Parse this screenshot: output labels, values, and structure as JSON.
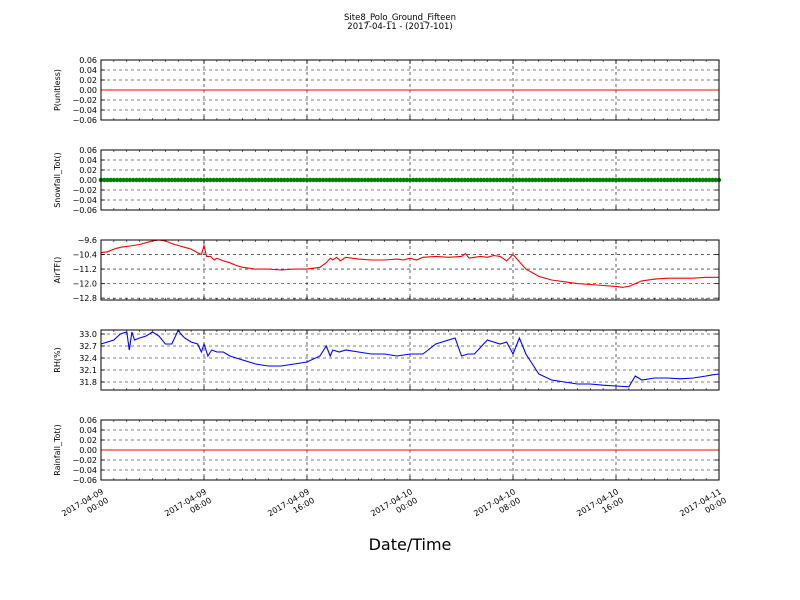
{
  "title": "Site8_Polo_Ground_Fifteen",
  "subtitle": "2017-04-11 - (2017-101)",
  "xlabel": "Date/Time",
  "x_ticks": [
    [
      "2017-04-09",
      "00:00"
    ],
    [
      "2017-04-09",
      "08:00"
    ],
    [
      "2017-04-09",
      "16:00"
    ],
    [
      "2017-04-10",
      "00:00"
    ],
    [
      "2017-04-10",
      "08:00"
    ],
    [
      "2017-04-10",
      "16:00"
    ],
    [
      "2017-04-11",
      "00:00"
    ]
  ],
  "chart_data": [
    {
      "type": "line",
      "ylabel": "P(unitless)",
      "ylim": [
        -0.06,
        0.06
      ],
      "yticks": [
        "0.06",
        "0.04",
        "0.02",
        "0.00",
        "−0.02",
        "−0.04",
        "−0.06"
      ],
      "color": "#ff0000",
      "x": [
        0,
        48
      ],
      "y": [
        0.0,
        0.0
      ],
      "grid": true
    },
    {
      "type": "line",
      "ylabel": "Snowfall_Tot()",
      "ylim": [
        -0.06,
        0.06
      ],
      "yticks": [
        "0.06",
        "0.04",
        "0.02",
        "0.00",
        "−0.02",
        "−0.04",
        "−0.06"
      ],
      "color": "#008000",
      "x": [
        0,
        48
      ],
      "y": [
        0.0,
        0.0
      ],
      "marker": "dot",
      "grid": true
    },
    {
      "type": "line",
      "ylabel": "AirTF()",
      "ylim": [
        -12.9,
        -9.6
      ],
      "yticks": [
        "−9.6",
        "−10.4",
        "−11.2",
        "−12.0",
        "−12.8"
      ],
      "color": "#ff0000",
      "x": [
        0,
        0.5,
        1,
        1.5,
        2,
        2.5,
        3,
        3.5,
        4,
        4.5,
        5,
        5.5,
        6,
        6.5,
        7,
        7.5,
        7.8,
        8.0,
        8.2,
        8.5,
        8.8,
        9,
        9.5,
        10,
        10.5,
        11,
        12,
        13,
        14,
        15,
        16,
        17,
        17.5,
        17.8,
        18,
        18.3,
        18.6,
        19,
        20,
        21,
        22,
        23,
        23.5,
        24,
        24.5,
        25,
        26,
        27,
        28,
        28.3,
        28.6,
        29,
        29.5,
        30,
        30.5,
        31,
        31.5,
        32,
        33,
        34,
        35,
        36,
        37,
        38,
        39,
        40,
        40.5,
        41,
        41.5,
        42,
        43,
        44,
        45,
        46,
        47,
        48
      ],
      "y": [
        -10.3,
        -10.25,
        -10.1,
        -10.0,
        -9.95,
        -9.9,
        -9.85,
        -9.75,
        -9.65,
        -9.6,
        -9.65,
        -9.8,
        -9.9,
        -10.0,
        -10.1,
        -10.3,
        -10.4,
        -9.9,
        -10.5,
        -10.5,
        -10.7,
        -10.6,
        -10.75,
        -10.85,
        -11.0,
        -11.1,
        -11.2,
        -11.2,
        -11.25,
        -11.2,
        -11.2,
        -11.1,
        -10.85,
        -10.6,
        -10.7,
        -10.55,
        -10.75,
        -10.55,
        -10.65,
        -10.7,
        -10.7,
        -10.65,
        -10.7,
        -10.6,
        -10.7,
        -10.55,
        -10.5,
        -10.55,
        -10.5,
        -10.35,
        -10.6,
        -10.55,
        -10.5,
        -10.55,
        -10.45,
        -10.5,
        -10.75,
        -10.4,
        -11.2,
        -11.6,
        -11.8,
        -11.9,
        -12.0,
        -12.05,
        -12.1,
        -12.15,
        -12.2,
        -12.15,
        -12.0,
        -11.85,
        -11.75,
        -11.7,
        -11.7,
        -11.7,
        -11.65,
        -11.65
      ],
      "grid": true
    },
    {
      "type": "line",
      "ylabel": "RH(%)",
      "ylim": [
        31.6,
        33.1
      ],
      "yticks": [
        "33.0",
        "32.7",
        "32.4",
        "32.1",
        "31.8"
      ],
      "color": "#0000ff",
      "x": [
        0,
        0.5,
        1,
        1.5,
        2,
        2.2,
        2.4,
        2.6,
        3,
        3.5,
        4,
        4.5,
        5,
        5.5,
        6,
        6.2,
        6.5,
        7,
        7.5,
        7.8,
        8.0,
        8.3,
        8.6,
        9,
        9.5,
        10,
        11,
        12,
        13,
        14,
        15,
        16,
        17,
        17.5,
        17.8,
        18,
        18.5,
        19,
        20,
        21,
        22,
        23,
        24,
        25,
        26,
        27,
        27.5,
        28,
        28.5,
        29,
        30,
        31,
        31.5,
        32,
        32.5,
        33,
        34,
        35,
        36,
        37,
        38,
        39,
        40,
        41,
        41.5,
        42,
        43,
        44,
        45,
        46,
        47,
        47.5,
        48
      ],
      "y": [
        32.75,
        32.8,
        32.85,
        33.0,
        33.05,
        32.6,
        33.05,
        32.85,
        32.9,
        32.95,
        33.05,
        32.95,
        32.75,
        32.75,
        33.1,
        33.0,
        32.9,
        32.8,
        32.75,
        32.55,
        32.75,
        32.45,
        32.6,
        32.55,
        32.55,
        32.45,
        32.35,
        32.25,
        32.2,
        32.2,
        32.25,
        32.3,
        32.45,
        32.7,
        32.45,
        32.6,
        32.55,
        32.6,
        32.55,
        32.5,
        32.5,
        32.45,
        32.5,
        32.5,
        32.75,
        32.85,
        32.9,
        32.45,
        32.5,
        32.5,
        32.85,
        32.75,
        32.8,
        32.5,
        32.9,
        32.5,
        32.0,
        31.85,
        31.8,
        31.75,
        31.75,
        31.72,
        31.7,
        31.68,
        31.95,
        31.85,
        31.9,
        31.9,
        31.88,
        31.9,
        31.95,
        31.98,
        32.0
      ],
      "grid": true
    },
    {
      "type": "line",
      "ylabel": "Rainfall_Tot()",
      "ylim": [
        -0.06,
        0.06
      ],
      "yticks": [
        "0.06",
        "0.04",
        "0.02",
        "0.00",
        "−0.02",
        "−0.04",
        "−0.06"
      ],
      "color": "#ff0000",
      "x": [
        0,
        48
      ],
      "y": [
        0.0,
        0.0
      ],
      "grid": true
    }
  ]
}
